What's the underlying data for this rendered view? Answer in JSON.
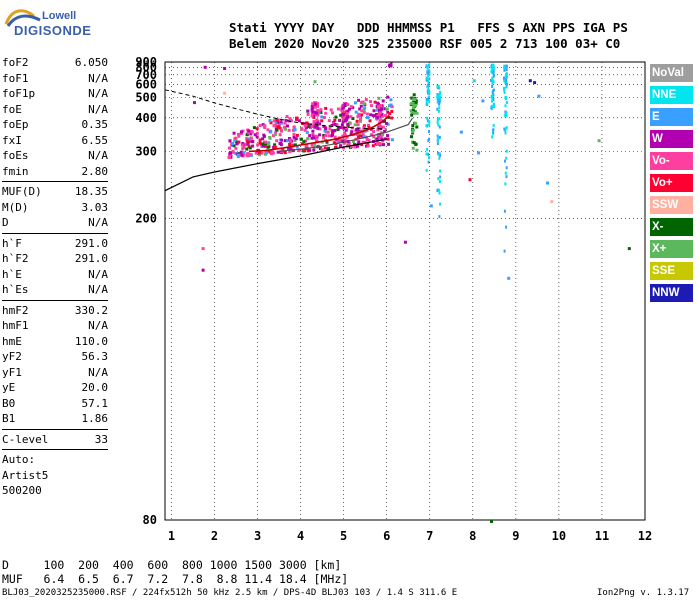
{
  "logo": {
    "line1": "Lowell",
    "line2": "DIGISONDE"
  },
  "header": {
    "line1": "Stati YYYY DAY   DDD HHMMSS P1   FFS S AXN PPS IGA PS",
    "line2": "Belem 2020 Nov20 325 235000 RSF 005 2 713 100 03+ C0"
  },
  "params": {
    "group1": [
      {
        "name": "foF2",
        "value": "6.050"
      },
      {
        "name": "foF1",
        "value": "N/A"
      },
      {
        "name": "foF1p",
        "value": "N/A"
      },
      {
        "name": "foE",
        "value": "N/A"
      },
      {
        "name": "foEp",
        "value": "0.35"
      },
      {
        "name": "fxI",
        "value": "6.55"
      },
      {
        "name": "foEs",
        "value": "N/A"
      },
      {
        "name": "fmin",
        "value": "2.80"
      }
    ],
    "group2": [
      {
        "name": "MUF(D)",
        "value": "18.35"
      },
      {
        "name": "M(D)",
        "value": "3.03"
      },
      {
        "name": "D",
        "value": "N/A"
      }
    ],
    "group3": [
      {
        "name": "h`F",
        "value": "291.0"
      },
      {
        "name": "h`F2",
        "value": "291.0"
      },
      {
        "name": "h`E",
        "value": "N/A"
      },
      {
        "name": "h`Es",
        "value": "N/A"
      }
    ],
    "group4": [
      {
        "name": "hmF2",
        "value": "330.2"
      },
      {
        "name": "hmF1",
        "value": "N/A"
      },
      {
        "name": "hmE",
        "value": "110.0"
      },
      {
        "name": "yF2",
        "value": "56.3"
      },
      {
        "name": "yF1",
        "value": "N/A"
      },
      {
        "name": "yE",
        "value": "20.0"
      },
      {
        "name": "B0",
        "value": "57.1"
      },
      {
        "name": "B1",
        "value": "1.86"
      }
    ],
    "group5": [
      {
        "name": "C-level",
        "value": "33"
      }
    ],
    "auto": [
      "Auto:",
      "Artist5",
      "500200"
    ]
  },
  "legend": [
    {
      "label": "NoVal",
      "color": "#9e9e9e"
    },
    {
      "label": "NNE",
      "color": "#00e5ee"
    },
    {
      "label": "E",
      "color": "#3aa0ff"
    },
    {
      "label": "W",
      "color": "#b000b0"
    },
    {
      "label": "Vo-",
      "color": "#ff3fa0"
    },
    {
      "label": "Vo+",
      "color": "#ff0033"
    },
    {
      "label": "SSW",
      "color": "#ffb0a0"
    },
    {
      "label": "X-",
      "color": "#006400"
    },
    {
      "label": "X+",
      "color": "#5cb85c"
    },
    {
      "label": "SSE",
      "color": "#c8c800"
    },
    {
      "label": "NNW",
      "color": "#1c1cb4"
    }
  ],
  "bottom": {
    "line1": "D     100  200  400  600  800 1000 1500 3000 [km]",
    "line2": "MUF   6.4  6.5  6.7  7.2  7.8  8.8 11.4 18.4 [MHz]"
  },
  "footer": {
    "left": "BLJ03_2020325235000.RSF / 224fx512h 50 kHz 2.5 km / DPS-4D BLJ03 103 / 1.4 S 311.6 E",
    "right": "Ion2Png v. 1.3.17"
  },
  "chart_data": {
    "type": "scatter",
    "x_ticks": [
      "1",
      "2",
      "3",
      "4",
      "5",
      "6",
      "7",
      "8",
      "9",
      "10",
      "11",
      "12"
    ],
    "y_ticks": [
      "80",
      "200",
      "300",
      "400",
      "500",
      "600",
      "700",
      "800",
      "900"
    ],
    "xlim": [
      0.85,
      12.0
    ],
    "ylim": [
      80,
      900
    ],
    "y_scale": "reciprocal",
    "grid": true,
    "traces": {
      "bottomside_profile": {
        "x": [
          0.85,
          1.5,
          2,
          3,
          4,
          5,
          6
        ],
        "y": [
          232,
          252,
          260,
          275,
          290,
          310,
          330
        ]
      },
      "topside_dashed": {
        "x": [
          0.85,
          1.5,
          2,
          2.5,
          3,
          3.5,
          4,
          4.5,
          5,
          5.5,
          6
        ],
        "y": [
          555,
          510,
          470,
          440,
          415,
          395,
          380,
          372,
          366,
          362,
          360
        ]
      },
      "o_trace": {
        "x": [
          2.8,
          3.2,
          3.6,
          4.0,
          4.4,
          4.8,
          5.2,
          5.6,
          5.9,
          6.05
        ],
        "y": [
          300,
          302,
          308,
          315,
          322,
          330,
          342,
          360,
          385,
          410
        ]
      },
      "x_trace": {
        "x": [
          3.5,
          4.0,
          4.5,
          5.0,
          5.5,
          6.0,
          6.5,
          6.6
        ],
        "y": [
          300,
          305,
          312,
          322,
          335,
          350,
          375,
          400
        ]
      }
    }
  }
}
